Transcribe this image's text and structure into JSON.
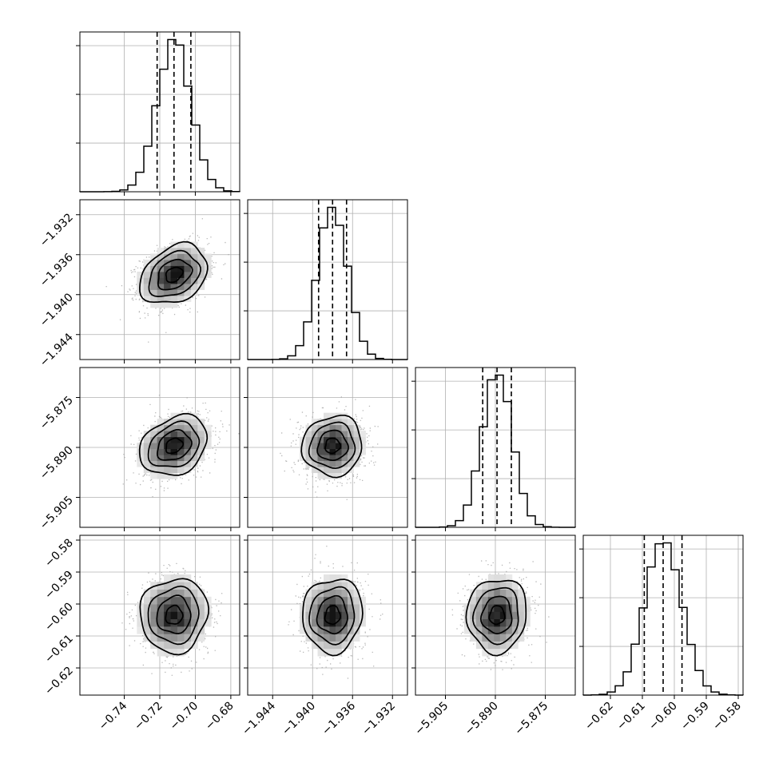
{
  "chart_data": {
    "type": "corner",
    "parameters": [
      {
        "range": [
          -0.765,
          -0.675
        ],
        "ticks": [
          -0.74,
          -0.72,
          -0.7,
          -0.68
        ],
        "tick_labels": [
          "−0.74",
          "−0.72",
          "−0.70",
          "−0.68"
        ],
        "mean": -0.712,
        "sigma": 0.0095,
        "quantiles": [
          -0.7215,
          -0.712,
          -0.7025
        ]
      },
      {
        "range": [
          -1.9465,
          -1.9305
        ],
        "ticks": [
          -1.944,
          -1.94,
          -1.936,
          -1.932
        ],
        "tick_labels": [
          "−1.944",
          "−1.940",
          "−1.936",
          "−1.932"
        ],
        "mean": -1.938,
        "sigma": 0.0015,
        "quantiles": [
          -1.9394,
          -1.938,
          -1.9366
        ]
      },
      {
        "range": [
          -5.914,
          -5.866
        ],
        "ticks": [
          -5.905,
          -5.89,
          -5.875
        ],
        "tick_labels": [
          "−5.905",
          "−5.890",
          "−5.875"
        ],
        "mean": -5.8895,
        "sigma": 0.0045,
        "quantiles": [
          -5.8938,
          -5.8895,
          -5.8852
        ]
      },
      {
        "range": [
          -0.6285,
          -0.5785
        ],
        "ticks": [
          -0.62,
          -0.61,
          -0.6,
          -0.59,
          -0.58
        ],
        "tick_labels": [
          "−0.62",
          "−0.61",
          "−0.60",
          "−0.59",
          "−0.58"
        ],
        "mean": -0.6035,
        "sigma": 0.0058,
        "quantiles": [
          -0.6094,
          -0.6035,
          -0.5976
        ]
      }
    ],
    "correlations": [
      [
        1,
        0.3,
        0.25,
        0.05
      ],
      [
        0.3,
        1,
        0.05,
        0.05
      ],
      [
        0.25,
        0.05,
        1,
        0.05
      ],
      [
        0.05,
        0.05,
        0.05,
        1
      ]
    ],
    "histogram_bins": 20,
    "contour_levels": 4,
    "grid": true,
    "colors": {
      "line": "#000000",
      "density": "#000000",
      "points": "#a0a0a0",
      "grid": "#b0b0b0"
    }
  }
}
